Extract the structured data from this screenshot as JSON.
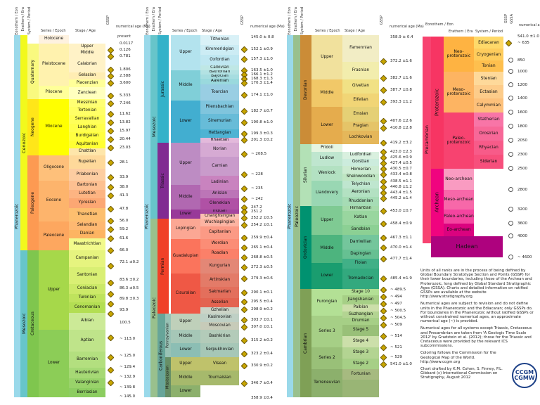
{
  "headers": {
    "eonothem_eon": "Eonothem / Eon",
    "erathem_era": "Erathem / Era",
    "system_period": "System / Period",
    "series_epoch": "Series / Epoch",
    "stage_age": "Stage / Age",
    "gssp": "GSSP",
    "numerical_age": "numerical age (Ma)",
    "present": "present"
  },
  "col1": {
    "eon": "Phanerozoic",
    "eras": [
      "Cenozoic",
      "Mesozoic"
    ],
    "periods": [
      "Quaternary",
      "Neogene",
      "Paleogene",
      "Cretaceous"
    ],
    "epochs": [
      "Holocene",
      "Pleistocene",
      "Pliocene",
      "Miocene",
      "Oligocene",
      "Eocene",
      "Paleocene",
      "Upper",
      "Lower"
    ],
    "stages": [
      "Upper",
      "Middle",
      "Calabrian",
      "Gelasian",
      "Piacenzian",
      "Zanclean",
      "Messinian",
      "Tortonian",
      "Serravallian",
      "Langhian",
      "Burdigalian",
      "Aquitanian",
      "Chattian",
      "Rupelian",
      "Priabonian",
      "Bartonian",
      "Lutetian",
      "Ypresian",
      "Thanetian",
      "Selandian",
      "Danian",
      "Maastrichtian",
      "Campanian",
      "Santonian",
      "Coniacian",
      "Turonian",
      "Cenomanian",
      "Albian",
      "Aptian",
      "Barremian",
      "Hauterivian",
      "Valanginian",
      "Berriasian"
    ],
    "ages": [
      "0.0117",
      "0.126",
      "0.781",
      "1.806",
      "2.588",
      "3.600",
      "5.333",
      "7.246",
      "11.62",
      "13.82",
      "15.97",
      "20.44",
      "23.03",
      "28.1",
      "33.9",
      "38.0",
      "41.3",
      "47.8",
      "56.0",
      "59.2",
      "61.6",
      "66.0",
      "72.1 ±0.2",
      "83.6 ±0.2",
      "86.3 ±0.5",
      "89.8 ±0.3",
      "93.9",
      "100.5",
      "~ 113.0",
      "~ 125.0",
      "~ 129.4",
      "~ 132.9",
      "~ 139.8",
      "~ 145.0"
    ]
  },
  "col2": {
    "eon": "Phanerozoic",
    "eras": [
      "Mesozoic",
      "Paleozoic"
    ],
    "periods": [
      "Jurassic",
      "Triassic",
      "Permian",
      "Carboniferous"
    ],
    "subperiods": [
      "Pennsylvanian",
      "Mississippian"
    ],
    "epochs": [
      "Upper",
      "Middle",
      "Lower",
      "Upper",
      "Middle",
      "Lower",
      "Lopingian",
      "Guadalupian",
      "Cisuralian",
      "Upper",
      "Middle",
      "Lower",
      "Upper",
      "Middle",
      "Lower"
    ],
    "stages": [
      "Tithonian",
      "Kimmeridgian",
      "Oxfordian",
      "Callovian",
      "Bathonian",
      "Bajocian",
      "Aalenian",
      "Toarcian",
      "Pliensbachian",
      "Sinemurian",
      "Hettangian",
      "Rhaetian",
      "Norian",
      "Carnian",
      "Ladinian",
      "Anisian",
      "Olenekian",
      "Induan",
      "Changhsingian",
      "Wuchiapingian",
      "Capitanian",
      "Wordian",
      "Roadian",
      "Kungurian",
      "Artinskian",
      "Sakmarian",
      "Asselian",
      "Gzhelian",
      "Kasimovian",
      "Moscovian",
      "Bashkirian",
      "Serpukhovian",
      "Visean",
      "Tournaisian"
    ],
    "ages": [
      "145.0 ± 0.8",
      "152.1 ±0.9",
      "157.3 ±1.0",
      "163.5 ±1.0",
      "166.1 ±1.2",
      "168.3 ±1.3",
      "170.3 ±1.4",
      "174.1 ±1.0",
      "182.7 ±0.7",
      "190.8 ±1.0",
      "199.3 ±0.3",
      "201.3 ±0.2",
      "~ 208.5",
      "~ 228",
      "~ 235",
      "~ 242",
      "247.2",
      "251.2",
      "252.2 ±0.5",
      "254.2 ±0.1",
      "259.9 ±0.4",
      "265.1 ±0.4",
      "268.8 ±0.5",
      "272.3 ±0.5",
      "279.3 ±0.6",
      "290.1 ±0.1",
      "295.5 ±0.4",
      "298.9 ±0.2",
      "303.7 ±0.1",
      "307.0 ±0.1",
      "315.2 ±0.2",
      "323.2 ±0.4",
      "330.9 ±0.2",
      "346.7 ±0.4",
      "358.9 ±0.4"
    ]
  },
  "col3": {
    "eon": "Phanerozoic",
    "era": "Paleozoic",
    "periods": [
      "Devonian",
      "Silurian",
      "Ordovician",
      "Cambrian"
    ],
    "epochs": [
      "Upper",
      "Middle",
      "Lower",
      "Pridoli",
      "Ludlow",
      "Wenlock",
      "Llandovery",
      "Upper",
      "Middle",
      "Lower",
      "Furongian",
      "Series 3",
      "Series 2",
      "Terreneuvian"
    ],
    "stages": [
      "Famennian",
      "Frasnian",
      "Givetian",
      "Eifelian",
      "Emsian",
      "Pragian",
      "Lochkovian",
      "Ludfordian",
      "Gorstian",
      "Homerian",
      "Sheinwoodian",
      "Telychian",
      "Aeronian",
      "Rhuddanian",
      "Hirnantian",
      "Katian",
      "Sandbian",
      "Darriwilian",
      "Dapingian",
      "Floian",
      "Tremadocian",
      "Stage 10",
      "Jiangshanian",
      "Paibian",
      "Guzhangian",
      "Drumian",
      "Stage 5",
      "Stage 4",
      "Stage 3",
      "Stage 2",
      "Fortunian"
    ],
    "ages": [
      "358.9 ± 0.4",
      "372.2 ±1.6",
      "382.7 ±1.6",
      "387.7 ±0.8",
      "393.3 ±1.2",
      "407.6 ±2.6",
      "410.8 ±2.8",
      "419.2 ±3.2",
      "423.0 ±2.3",
      "425.6 ±0.9",
      "427.4 ±0.5",
      "430.5 ±0.7",
      "433.4 ±0.8",
      "438.5 ±1.1",
      "440.8 ±1.2",
      "443.4 ±1.5",
      "445.2 ±1.4",
      "453.0 ±0.7",
      "458.4 ±0.9",
      "467.3 ±1.1",
      "470.0 ±1.4",
      "477.7 ±1.4",
      "485.4 ±1.9",
      "~ 489.5",
      "~ 494",
      "~ 497",
      "~ 500.5",
      "~ 504.5",
      "~ 509",
      "~ 514",
      "~ 521",
      "~ 529",
      "541.0 ±1.0"
    ]
  },
  "col4": {
    "headers": {
      "eonothem_eon": "Eonothem / Eon",
      "erathem_era": "Erathem / Era",
      "system_period": "System / Period",
      "gssp": "GSSP",
      "gssa": "GSSA",
      "numerical_age": "numerical age (Ma)"
    },
    "eon": "Precambrian",
    "eons": [
      "Proterozoic",
      "Archean",
      "Hadean"
    ],
    "eras": [
      "Neo-proterozoic",
      "Meso-proterozoic",
      "Paleo-proterozoic",
      "Neo-archean",
      "Meso-archean",
      "Paleo-archean",
      "Eo-archean"
    ],
    "periods": [
      "Ediacaran",
      "Cryogenian",
      "Tonian",
      "Stenian",
      "Ectasian",
      "Calymmian",
      "Statherian",
      "Orosirian",
      "Rhyacian",
      "Siderian"
    ],
    "ages": [
      "541.0 ±1.0",
      "~ 635",
      "850",
      "1000",
      "1200",
      "1400",
      "1600",
      "1800",
      "2050",
      "2300",
      "2500",
      "2800",
      "3200",
      "3600",
      "4000",
      "~ 4600"
    ]
  },
  "notes": [
    "Units of all ranks are in the process of being defined by Global Boundary Stratotype Section and Points (GSSP) for their lower boundaries, including those of the Archean and Proterozoic, long defined by Global Standard Stratigraphic Ages (GSSA). Charts and detailed information on ratified GSSPs are available at the website http://www.stratigraphy.org.",
    "Numerical ages are subject to revision and do not define units in the Phanerozoic and the Ediacaran; only GSSPs do. For boundaries in the Phanerozoic without ratified GSSPs or without constrained numerical ages, an approximate numerical age (~) is provided.",
    "Numerical ages for all systems except Triassic, Cretaceous and Precambrian are taken from 'A Geologic Time Scale 2012' by Gradstein et al. (2012); those for the Triassic and Cretaceous were provided by the relevant ICS subcommissions.",
    "Coloring follows the Commission for the Geological Map of the World. http://www.ccgm.org",
    "Chart drafted by K.M. Cohen, S. Finney, P.L. Gibbard (c) International Commission on Stratigraphy, August 2012"
  ],
  "logo": {
    "line1": "CCGM",
    "line2": "CGMW"
  }
}
